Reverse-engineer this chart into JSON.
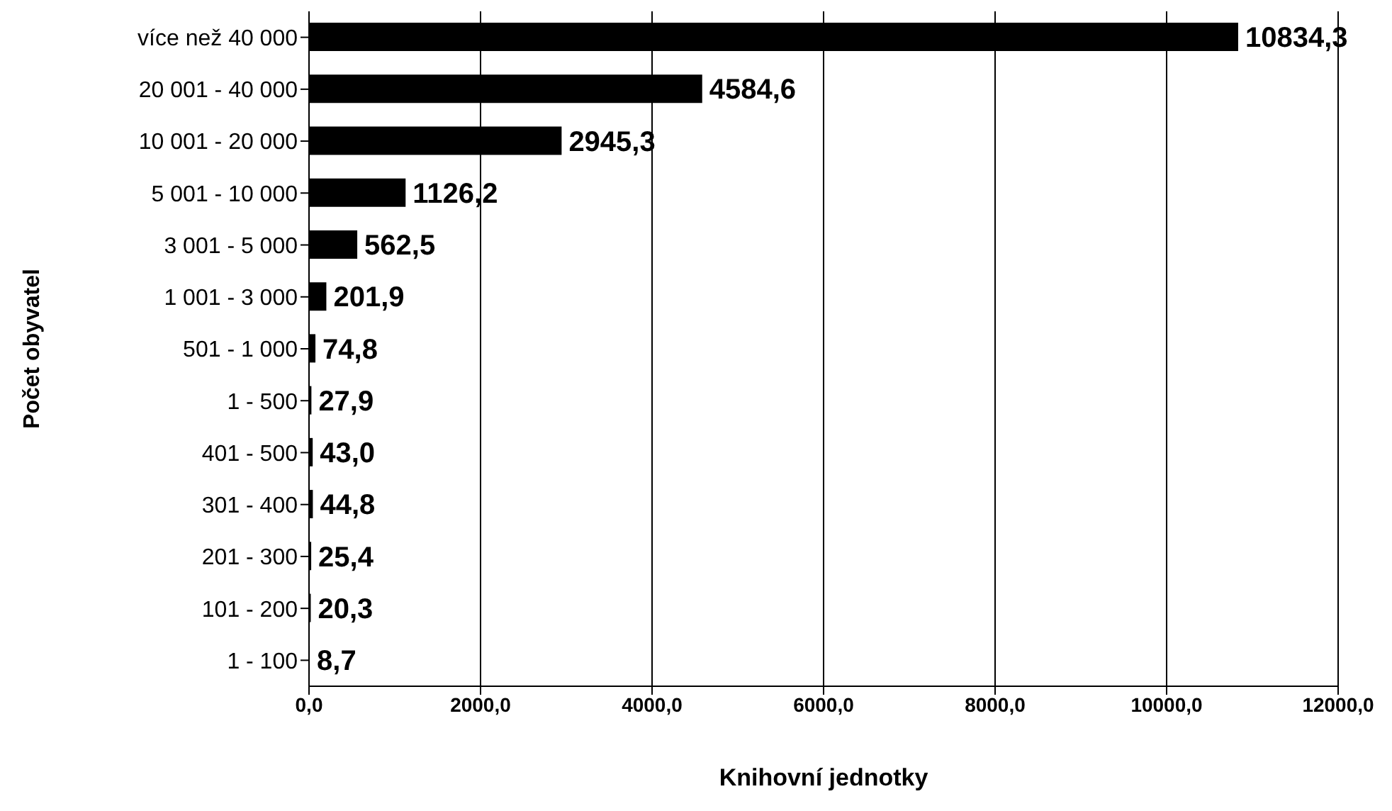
{
  "chart_data": {
    "type": "bar",
    "orientation": "horizontal",
    "xlabel": "Knihovní jednotky",
    "ylabel": "Počet obyvatel",
    "categories": [
      "více než 40 000",
      "20 001 - 40 000",
      "10 001 - 20 000",
      "5 001 - 10 000",
      "3 001 - 5 000",
      "1 001 - 3 000",
      "501 - 1 000",
      "1 - 500",
      "401 - 500",
      "301 - 400",
      "201 - 300",
      "101 - 200",
      "1 - 100"
    ],
    "values": [
      10834.3,
      4584.6,
      2945.3,
      1126.2,
      562.5,
      201.9,
      74.8,
      27.9,
      43.0,
      44.8,
      25.4,
      20.3,
      8.7
    ],
    "value_labels": [
      "10834,3",
      "4584,6",
      "2945,3",
      "1126,2",
      "562,5",
      "201,9",
      "74,8",
      "27,9",
      "43,0",
      "44,8",
      "25,4",
      "20,3",
      "8,7"
    ],
    "color": "#000000",
    "xlim": [
      0,
      12000
    ],
    "xticks": [
      {
        "value": 0,
        "label": "0,0"
      },
      {
        "value": 2000,
        "label": "2000,0"
      },
      {
        "value": 4000,
        "label": "4000,0"
      },
      {
        "value": 6000,
        "label": "6000,0"
      },
      {
        "value": 8000,
        "label": "8000,0"
      },
      {
        "value": 10000,
        "label": "10000,0"
      },
      {
        "value": 12000,
        "label": "12000,0"
      }
    ],
    "grid": "x"
  }
}
